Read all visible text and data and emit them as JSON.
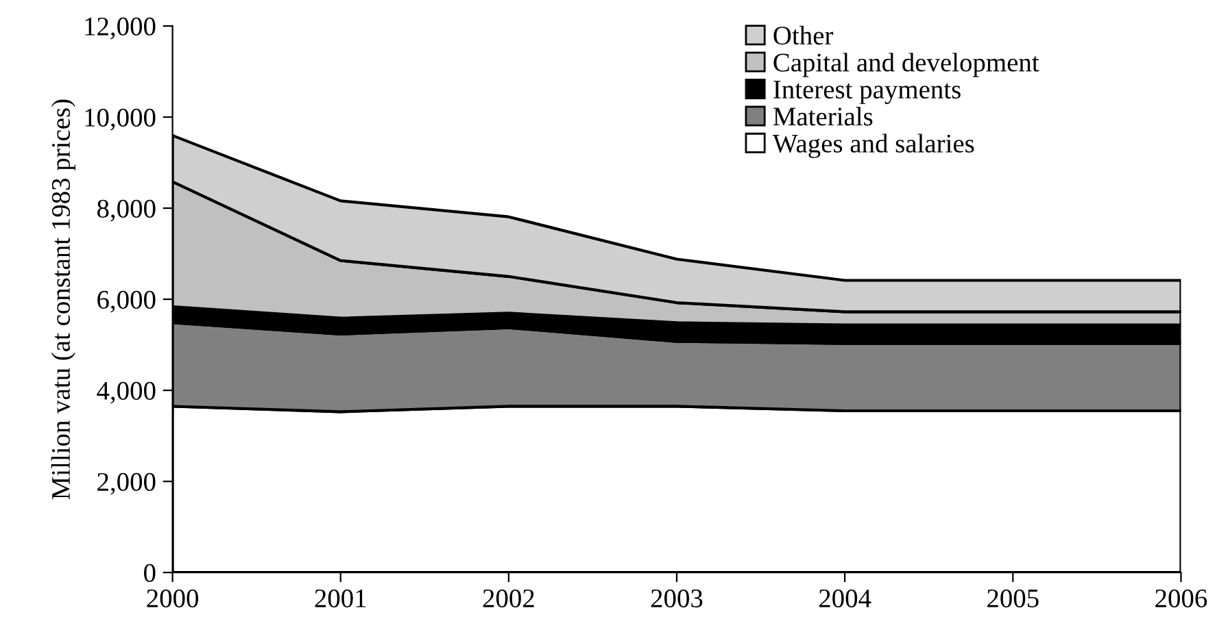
{
  "chart_data": {
    "type": "area",
    "stacked": true,
    "ylabel": "Million vatu (at constant 1983 prices)",
    "x": [
      2000,
      2001,
      2002,
      2003,
      2004,
      2005,
      2006
    ],
    "xlim": [
      2000,
      2006
    ],
    "xticks": [
      2000,
      2001,
      2002,
      2003,
      2004,
      2005,
      2006
    ],
    "ylim": [
      0,
      12000
    ],
    "yticks": [
      {
        "value": 0,
        "label": "0"
      },
      {
        "value": 2000,
        "label": "2,000"
      },
      {
        "value": 4000,
        "label": "4,000"
      },
      {
        "value": 6000,
        "label": "6,000"
      },
      {
        "value": 8000,
        "label": "8,000"
      },
      {
        "value": 10000,
        "label": "10,000"
      },
      {
        "value": 12000,
        "label": "12,000"
      }
    ],
    "grid": false,
    "legend": "top right",
    "series": [
      {
        "name": "Wages and salaries",
        "color": "#ffffff",
        "values": [
          3650,
          3530,
          3650,
          3650,
          3550,
          3550,
          3550
        ]
      },
      {
        "name": "Materials",
        "color": "#808080",
        "values": [
          1835,
          1705,
          1725,
          1425,
          1480,
          1480,
          1480
        ]
      },
      {
        "name": "Interest payments",
        "color": "#000000",
        "values": [
          350,
          350,
          320,
          410,
          405,
          405,
          405
        ]
      },
      {
        "name": "Capital and development",
        "color": "#c0c0c0",
        "values": [
          2745,
          1265,
          805,
          440,
          290,
          290,
          290
        ]
      },
      {
        "name": "Other",
        "color": "#cfcfcf",
        "values": [
          1015,
          1310,
          1310,
          955,
          690,
          690,
          690
        ]
      }
    ]
  }
}
